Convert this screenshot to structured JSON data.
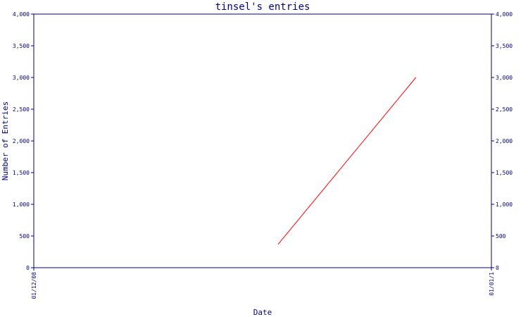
{
  "chart_data": {
    "type": "line",
    "title": "tinsel's entries",
    "xlabel": "Date",
    "ylabel": "Number of Entries",
    "x_tick_labels": [
      "01/12/08",
      "01/01/1"
    ],
    "x_range": [
      "01/12/08",
      "01/01/1"
    ],
    "ylim": [
      0,
      4000
    ],
    "y_ticks": [
      0,
      500,
      1000,
      1500,
      2000,
      2500,
      3000,
      3500,
      4000
    ],
    "y_tick_labels": [
      "0",
      "500",
      "1,000",
      "1,500",
      "2,000",
      "2,500",
      "3,000",
      "3,500",
      "4,000"
    ],
    "y_axis_both_sides": true,
    "grid": false,
    "series": [
      {
        "color": "#ff0000",
        "points": [
          {
            "x": 0.534,
            "y": 370
          },
          {
            "x": 0.835,
            "y": 3000
          }
        ]
      }
    ],
    "colors": {
      "axis": "#000080",
      "line": "#ff0000",
      "background": "#ffffff"
    }
  }
}
